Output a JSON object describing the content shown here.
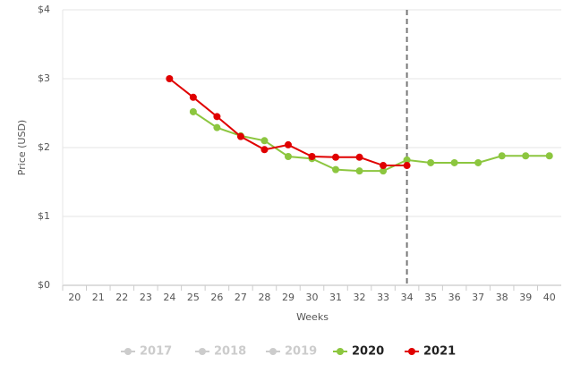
{
  "chart_data": {
    "type": "line",
    "y_axis_label": "Price (USD)",
    "x_axis_label": "Weeks",
    "categories": [
      "20",
      "21",
      "22",
      "23",
      "24",
      "25",
      "26",
      "27",
      "28",
      "29",
      "30",
      "31",
      "32",
      "33",
      "34",
      "35",
      "36",
      "37",
      "38",
      "39",
      "40"
    ],
    "series": [
      {
        "name": "2017",
        "color": "#cccccc",
        "visible": false,
        "values": [
          null,
          null,
          null,
          null,
          null,
          null,
          null,
          null,
          null,
          null,
          null,
          null,
          null,
          null,
          null,
          null,
          null,
          null,
          null,
          null,
          null
        ]
      },
      {
        "name": "2018",
        "color": "#cccccc",
        "visible": false,
        "values": [
          null,
          null,
          null,
          null,
          null,
          null,
          null,
          null,
          null,
          null,
          null,
          null,
          null,
          null,
          null,
          null,
          null,
          null,
          null,
          null,
          null
        ]
      },
      {
        "name": "2019",
        "color": "#cccccc",
        "visible": false,
        "values": [
          null,
          null,
          null,
          null,
          null,
          null,
          null,
          null,
          null,
          null,
          null,
          null,
          null,
          null,
          null,
          null,
          null,
          null,
          null,
          null,
          null
        ]
      },
      {
        "name": "2020",
        "color": "#8cc63f",
        "visible": true,
        "values": [
          null,
          null,
          null,
          null,
          null,
          2.52,
          2.29,
          2.17,
          2.1,
          1.87,
          1.84,
          1.68,
          1.66,
          1.66,
          1.82,
          1.78,
          1.78,
          1.78,
          1.88,
          1.88,
          1.88
        ]
      },
      {
        "name": "2021",
        "color": "#e00000",
        "visible": true,
        "values": [
          null,
          null,
          null,
          null,
          3.0,
          2.73,
          2.45,
          2.16,
          1.97,
          2.04,
          1.87,
          1.86,
          1.86,
          1.74,
          1.74,
          null,
          null,
          null,
          null,
          null,
          null
        ]
      }
    ],
    "reference_x": "34",
    "ylim": [
      0,
      4
    ],
    "yticks": [
      {
        "value": 0,
        "label": "$0"
      },
      {
        "value": 1,
        "label": "$1"
      },
      {
        "value": 2,
        "label": "$2"
      },
      {
        "value": 3,
        "label": "$3"
      },
      {
        "value": 4,
        "label": "$4"
      }
    ],
    "grid": true
  }
}
